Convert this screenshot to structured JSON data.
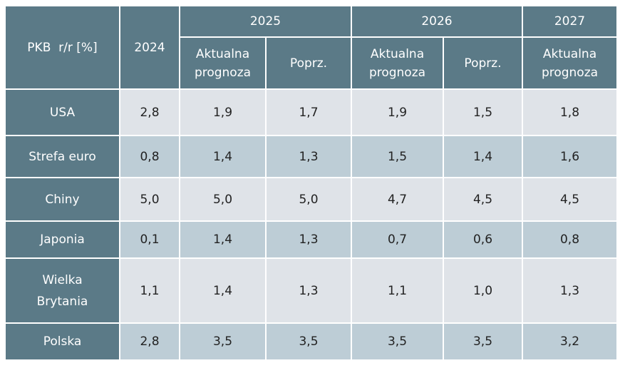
{
  "header": {
    "label": "PKB  r/r [%]",
    "y2024": "2024",
    "y2025": "2025",
    "y2026": "2026",
    "y2027": "2027",
    "current": "Aktualna prognoza",
    "previous": "Poprz."
  },
  "rows": [
    {
      "country": "USA",
      "values": [
        "2,8",
        "1,9",
        "1,7",
        "1,9",
        "1,5",
        "1,8"
      ]
    },
    {
      "country": "Strefa euro",
      "values": [
        "0,8",
        "1,4",
        "1,3",
        "1,5",
        "1,4",
        "1,6"
      ]
    },
    {
      "country": "Chiny",
      "values": [
        "5,0",
        "5,0",
        "5,0",
        "4,7",
        "4,5",
        "4,5"
      ]
    },
    {
      "country": "Japonia",
      "values": [
        "0,1",
        "1,4",
        "1,3",
        "0,7",
        "0,6",
        "0,8"
      ]
    },
    {
      "country": "Wielka Brytania",
      "values": [
        "1,1",
        "1,4",
        "1,3",
        "1,1",
        "1,0",
        "1,3"
      ]
    },
    {
      "country": "Polska",
      "values": [
        "2,8",
        "3,5",
        "3,5",
        "3,5",
        "3,5",
        "3,2"
      ]
    }
  ],
  "colors": {
    "header": "#5b7a87",
    "row_light": "#dfe3e8",
    "row_dark": "#bdcdd6"
  }
}
